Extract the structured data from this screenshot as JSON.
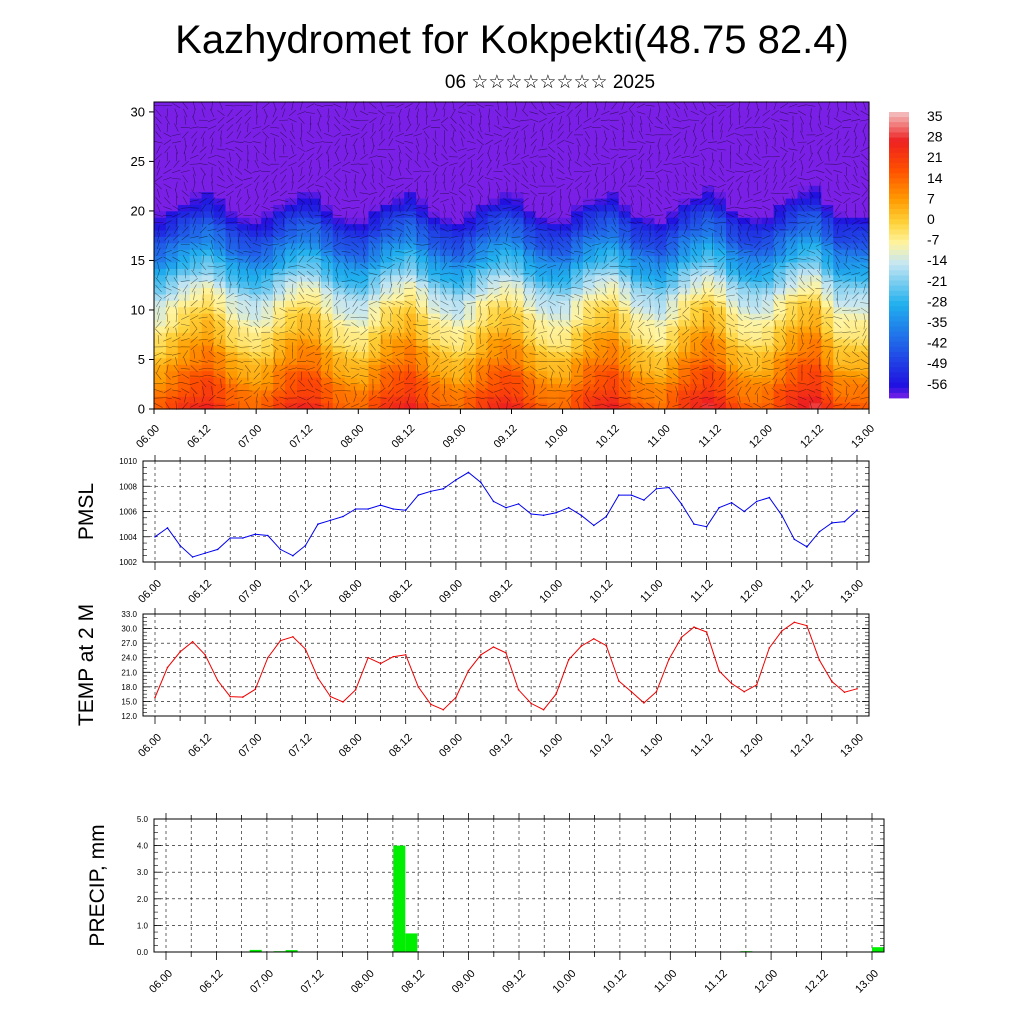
{
  "title": "Kazhydromet for Kokpekti(48.75 82.4)",
  "subtitle": "06 ☆☆☆☆☆☆☆☆ 2025",
  "chart_data": [
    {
      "type": "heatmap",
      "name": "vertical temperature and wind section",
      "x_ticks": [
        "06.00",
        "06.12",
        "07.00",
        "07.12",
        "08.00",
        "08.12",
        "09.00",
        "09.12",
        "10.00",
        "10.12",
        "11.00",
        "11.12",
        "12.00",
        "12.12",
        "13.00"
      ],
      "y_range": [
        0,
        31
      ],
      "y_ticks": [
        0,
        5,
        10,
        15,
        20,
        25,
        30
      ],
      "colorbar": {
        "labels": [
          "35",
          "28",
          "21",
          "14",
          "7",
          "0",
          "-7",
          "-14",
          "-21",
          "-28",
          "-35",
          "-42",
          "-49",
          "-56"
        ],
        "range": [
          -60,
          38
        ],
        "stops": [
          {
            "v": 38,
            "c": "#f4c6c6"
          },
          {
            "v": 28,
            "c": "#ee2020"
          },
          {
            "v": 18,
            "c": "#ff5000"
          },
          {
            "v": 8,
            "c": "#ff9a00"
          },
          {
            "v": 0,
            "c": "#ffd23a"
          },
          {
            "v": -7,
            "c": "#fff4a0"
          },
          {
            "v": -14,
            "c": "#c6e6f2"
          },
          {
            "v": -28,
            "c": "#20b0ee"
          },
          {
            "v": -42,
            "c": "#2060e8"
          },
          {
            "v": -56,
            "c": "#2010e0"
          },
          {
            "v": -60,
            "c": "#7a20e6"
          }
        ]
      },
      "surface_temps": [
        17,
        24,
        28,
        18,
        15,
        24,
        28,
        18,
        15,
        24,
        28,
        18,
        15,
        24,
        28,
        18,
        15,
        24,
        28,
        18,
        15,
        25,
        30,
        18,
        16,
        25,
        31,
        18,
        18
      ],
      "grid": true
    },
    {
      "type": "line",
      "ylabel": "PMSL",
      "ylim": [
        1002,
        1010
      ],
      "y_ticks": [
        "1002",
        "1004",
        "1006",
        "1008",
        "1010"
      ],
      "x_ticks": [
        "06.00",
        "06.12",
        "07.00",
        "07.12",
        "08.00",
        "08.12",
        "09.00",
        "09.12",
        "10.00",
        "10.12",
        "11.00",
        "11.12",
        "12.00",
        "12.12",
        "13.00"
      ],
      "x": [
        0,
        1,
        2,
        3,
        4,
        5,
        6,
        7,
        8,
        9,
        10,
        11,
        12,
        13,
        14,
        15,
        16,
        17,
        18,
        19,
        20,
        21,
        22,
        23,
        24,
        25,
        26,
        27,
        28,
        29,
        30,
        31,
        32,
        33,
        34,
        35,
        36,
        37,
        38,
        39,
        40,
        41,
        42,
        43,
        44,
        45,
        46,
        47,
        48,
        49,
        50,
        51,
        52,
        53,
        54,
        55,
        56
      ],
      "series": [
        {
          "color": "#0000ee",
          "values": [
            1004.0,
            1004.7,
            1003.3,
            1002.4,
            1002.7,
            1003.0,
            1003.9,
            1003.9,
            1004.2,
            1004.1,
            1003.0,
            1002.5,
            1003.3,
            1005.0,
            1005.3,
            1005.6,
            1006.2,
            1006.2,
            1006.5,
            1006.2,
            1006.1,
            1007.3,
            1007.6,
            1007.8,
            1008.5,
            1009.1,
            1008.3,
            1006.8,
            1006.3,
            1006.6,
            1005.8,
            1005.7,
            1005.9,
            1006.3,
            1005.7,
            1004.9,
            1005.6,
            1007.3,
            1007.3,
            1006.9,
            1007.8,
            1007.9,
            1006.6,
            1005.0,
            1004.8,
            1006.3,
            1006.7,
            1006.0,
            1006.8,
            1007.1,
            1005.7,
            1003.8,
            1003.2,
            1004.4,
            1005.1,
            1005.2,
            1006.1
          ]
        }
      ],
      "grid": true
    },
    {
      "type": "line",
      "ylabel": "TEMP at 2 M",
      "ylim": [
        12,
        33
      ],
      "y_ticks": [
        "12.0",
        "15.0",
        "18.0",
        "21.0",
        "24.0",
        "27.0",
        "30.0",
        "33.0"
      ],
      "x_ticks": [
        "06.00",
        "06.12",
        "07.00",
        "07.12",
        "08.00",
        "08.12",
        "09.00",
        "09.12",
        "10.00",
        "10.12",
        "11.00",
        "11.12",
        "12.00",
        "12.12",
        "13.00"
      ],
      "x": [
        0,
        1,
        2,
        3,
        4,
        5,
        6,
        7,
        8,
        9,
        10,
        11,
        12,
        13,
        14,
        15,
        16,
        17,
        18,
        19,
        20,
        21,
        22,
        23,
        24,
        25,
        26,
        27,
        28,
        29,
        30,
        31,
        32,
        33,
        34,
        35,
        36,
        37,
        38,
        39,
        40,
        41,
        42,
        43,
        44,
        45,
        46,
        47,
        48,
        49,
        50,
        51,
        52,
        53,
        54,
        55,
        56
      ],
      "series": [
        {
          "color": "#ee0000",
          "values": [
            15.8,
            22.0,
            25.2,
            27.3,
            24.6,
            19.3,
            16.0,
            15.9,
            17.5,
            24.0,
            27.5,
            28.3,
            25.8,
            19.8,
            16.0,
            14.9,
            17.4,
            24.0,
            22.8,
            24.2,
            24.6,
            18.0,
            14.4,
            13.3,
            15.8,
            21.3,
            24.6,
            26.2,
            25.0,
            17.4,
            14.6,
            13.3,
            16.5,
            23.6,
            26.4,
            27.9,
            26.5,
            19.2,
            17.0,
            14.7,
            17.0,
            23.7,
            28.2,
            30.3,
            29.3,
            21.3,
            18.7,
            17.0,
            18.4,
            26.0,
            29.5,
            31.3,
            30.6,
            23.5,
            19.1,
            16.9,
            17.6
          ]
        }
      ],
      "grid": true
    },
    {
      "type": "bar",
      "ylabel": "PRECIP, mm",
      "ylim": [
        0,
        5
      ],
      "y_ticks": [
        "0.0",
        "1.0",
        "2.0",
        "3.0",
        "4.0",
        "5.0"
      ],
      "x_ticks": [
        "06.00",
        "06.12",
        "07.00",
        "07.12",
        "08.00",
        "08.12",
        "09.00",
        "09.12",
        "10.00",
        "10.12",
        "11.00",
        "11.12",
        "12.00",
        "12.12",
        "13.00"
      ],
      "x": [
        8,
        10,
        11,
        20,
        21,
        49,
        60
      ],
      "values": [
        0.08,
        0.03,
        0.07,
        4.0,
        0.7,
        0.03,
        0.18
      ],
      "color": "#00ee00",
      "grid": true
    }
  ]
}
